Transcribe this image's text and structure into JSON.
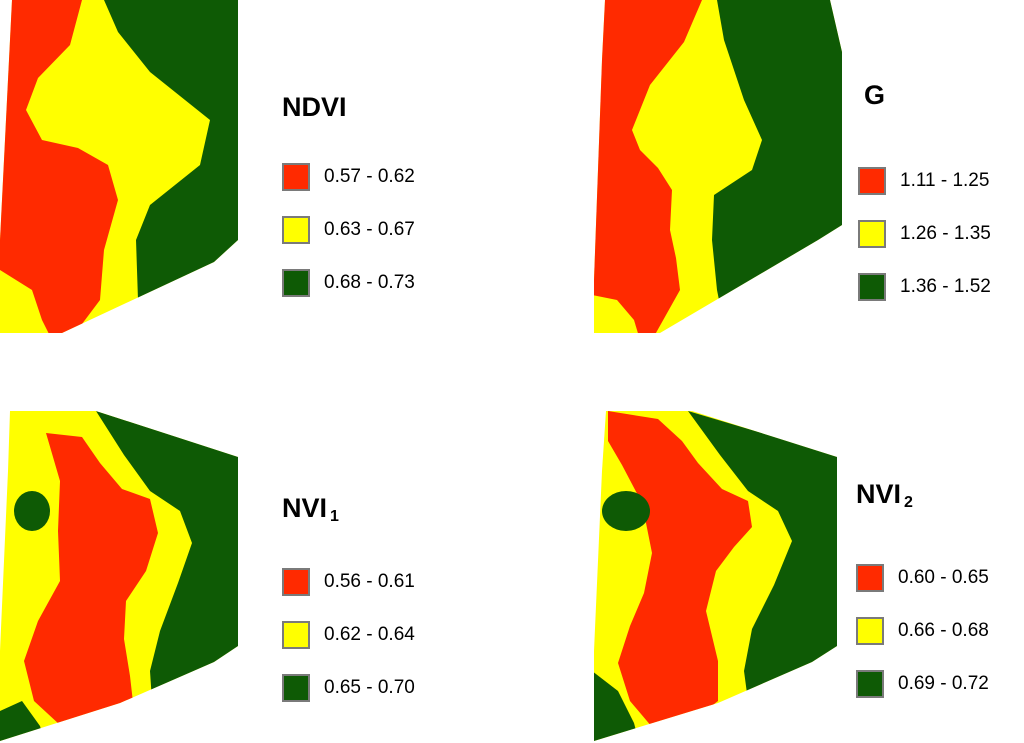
{
  "colors": {
    "low": "#ff2a00",
    "mid": "#ffff00",
    "high": "#0e5a05",
    "border": "#7a7a7a"
  },
  "panels": [
    {
      "title": "NDVI",
      "subscript": "",
      "legend": [
        {
          "range": "0.57 - 0.62",
          "color": "#ff2a00"
        },
        {
          "range": "0.63 - 0.67",
          "color": "#ffff00"
        },
        {
          "range": "0.68 - 0.73",
          "color": "#0e5a05"
        }
      ]
    },
    {
      "title": "G",
      "subscript": "",
      "legend": [
        {
          "range": "1.11 - 1.25",
          "color": "#ff2a00"
        },
        {
          "range": "1.26 - 1.35",
          "color": "#ffff00"
        },
        {
          "range": "1.36 - 1.52",
          "color": "#0e5a05"
        }
      ]
    },
    {
      "title": "NVI",
      "subscript": "1",
      "legend": [
        {
          "range": "0.56 - 0.61",
          "color": "#ff2a00"
        },
        {
          "range": "0.62 - 0.64",
          "color": "#ffff00"
        },
        {
          "range": "0.65 - 0.70",
          "color": "#0e5a05"
        }
      ]
    },
    {
      "title": "NVI",
      "subscript": "2",
      "legend": [
        {
          "range": "0.60 - 0.65",
          "color": "#ff2a00"
        },
        {
          "range": "0.66 - 0.68",
          "color": "#ffff00"
        },
        {
          "range": "0.69 - 0.72",
          "color": "#0e5a05"
        }
      ]
    }
  ]
}
